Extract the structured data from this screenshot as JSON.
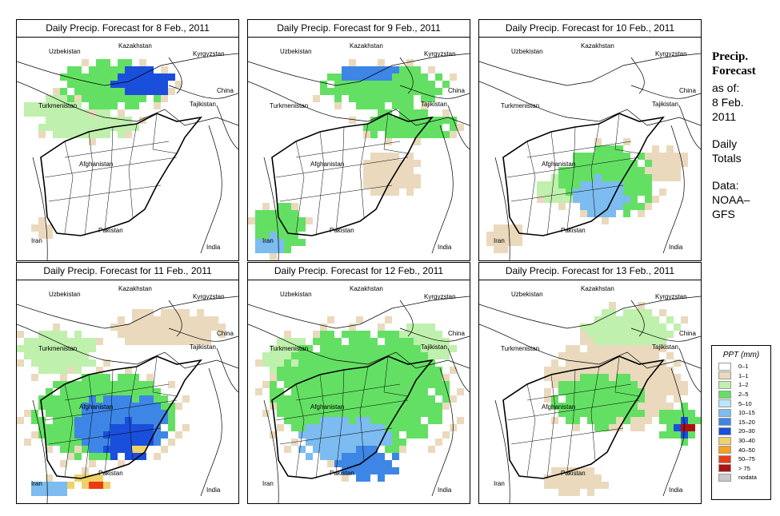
{
  "panels": [
    {
      "title": "Daily Precip. Forecast for  8 Feb., 2011"
    },
    {
      "title": "Daily Precip. Forecast for  9 Feb., 2011"
    },
    {
      "title": "Daily Precip. Forecast for  10 Feb., 2011"
    },
    {
      "title": "Daily Precip. Forecast for  11 Feb., 2011"
    },
    {
      "title": "Daily Precip. Forecast for  12 Feb., 2011"
    },
    {
      "title": "Daily Precip. Forecast for  13 Feb., 2011"
    }
  ],
  "map_labels": {
    "uzbekistan": "Uzbekistan",
    "kazakhstan": "Kazakhstan",
    "kyrgyzstan": "Kyrgyzstan",
    "turkmenistan": "Turkmenistan",
    "tajikistan": "Tajikistan",
    "china": "China",
    "afghanistan": "Afghanistan",
    "pakistan": "Pakistan",
    "iran": "Iran",
    "india": "India"
  },
  "sidebar": {
    "title_line1": "Precip.",
    "title_line2": "Forecast",
    "asof": "as of:",
    "date1": "8 Feb.",
    "date2": "2011",
    "totals1": "Daily",
    "totals2": "Totals",
    "data1": "Data:",
    "data2": "NOAA–",
    "data3": "GFS"
  },
  "legend": {
    "title": "PPT (mm)",
    "items": [
      {
        "label": "0–1",
        "color": "#ffffff"
      },
      {
        "label": "1–1",
        "color": "#ead9bd"
      },
      {
        "label": "1–2",
        "color": "#bff0ad"
      },
      {
        "label": "2–5",
        "color": "#63e063"
      },
      {
        "label": "5–10",
        "color": "#b9e6f9"
      },
      {
        "label": "10–15",
        "color": "#7cbcf0"
      },
      {
        "label": "15–20",
        "color": "#3d86e6"
      },
      {
        "label": "20–30",
        "color": "#1a4fdc"
      },
      {
        "label": "30–40",
        "color": "#f0d26a"
      },
      {
        "label": "40–50",
        "color": "#f5a21e"
      },
      {
        "label": "50–75",
        "color": "#ec3b12"
      },
      {
        "label": "> 75",
        "color": "#b01010"
      },
      {
        "label": "nodata",
        "color": "#c8c8c8"
      }
    ]
  }
}
